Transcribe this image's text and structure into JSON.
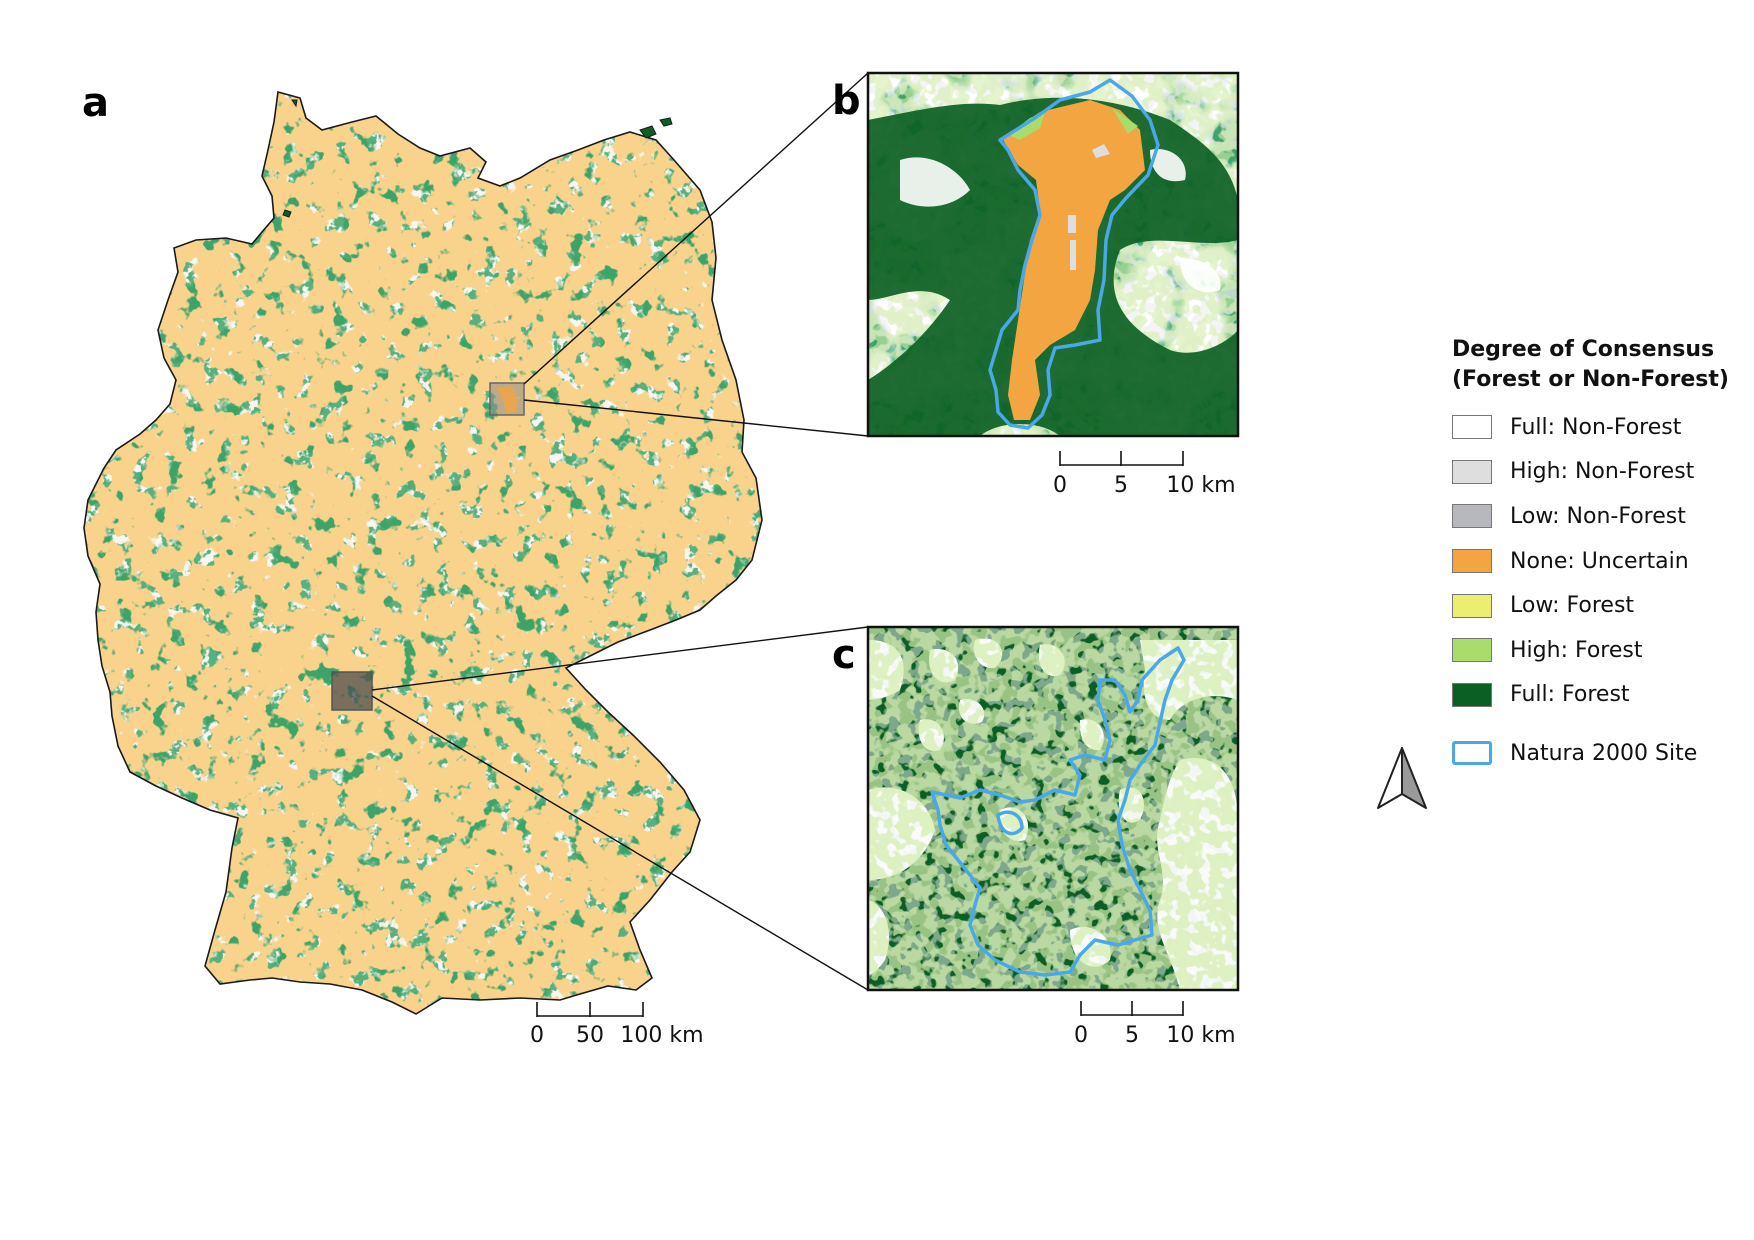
{
  "panels": {
    "a": "a",
    "b": "b",
    "c": "c"
  },
  "legend": {
    "title_line1": "Degree of Consensus",
    "title_line2": "(Forest or Non-Forest)",
    "items": [
      {
        "label": "Full: Non-Forest",
        "color": "#ffffff"
      },
      {
        "label": "High: Non-Forest",
        "color": "#dedede"
      },
      {
        "label": "Low: Non-Forest",
        "color": "#b7b8bd"
      },
      {
        "label": "None: Uncertain",
        "color": "#f2a541"
      },
      {
        "label": "Low: Forest",
        "color": "#ebee71"
      },
      {
        "label": "High: Forest",
        "color": "#a9dc6a"
      },
      {
        "label": "Full: Forest",
        "color": "#0c5f24"
      }
    ],
    "natura_label": "Natura 2000 Site",
    "natura_color": "#4aa8e8"
  },
  "scalebars": {
    "a": {
      "labels": [
        "0",
        "50",
        "100 km"
      ]
    },
    "b": {
      "labels": [
        "0",
        "5",
        "10 km"
      ]
    },
    "c": {
      "labels": [
        "0",
        "5",
        "10 km"
      ]
    }
  },
  "north_arrow": {
    "icon": "north-arrow-icon"
  },
  "colors": {
    "forest": "#0c5f24",
    "nonforest": "#ffffff",
    "uncertain": "#f2a541",
    "natura": "#4aa8e8",
    "border": "#1a1a1a"
  }
}
